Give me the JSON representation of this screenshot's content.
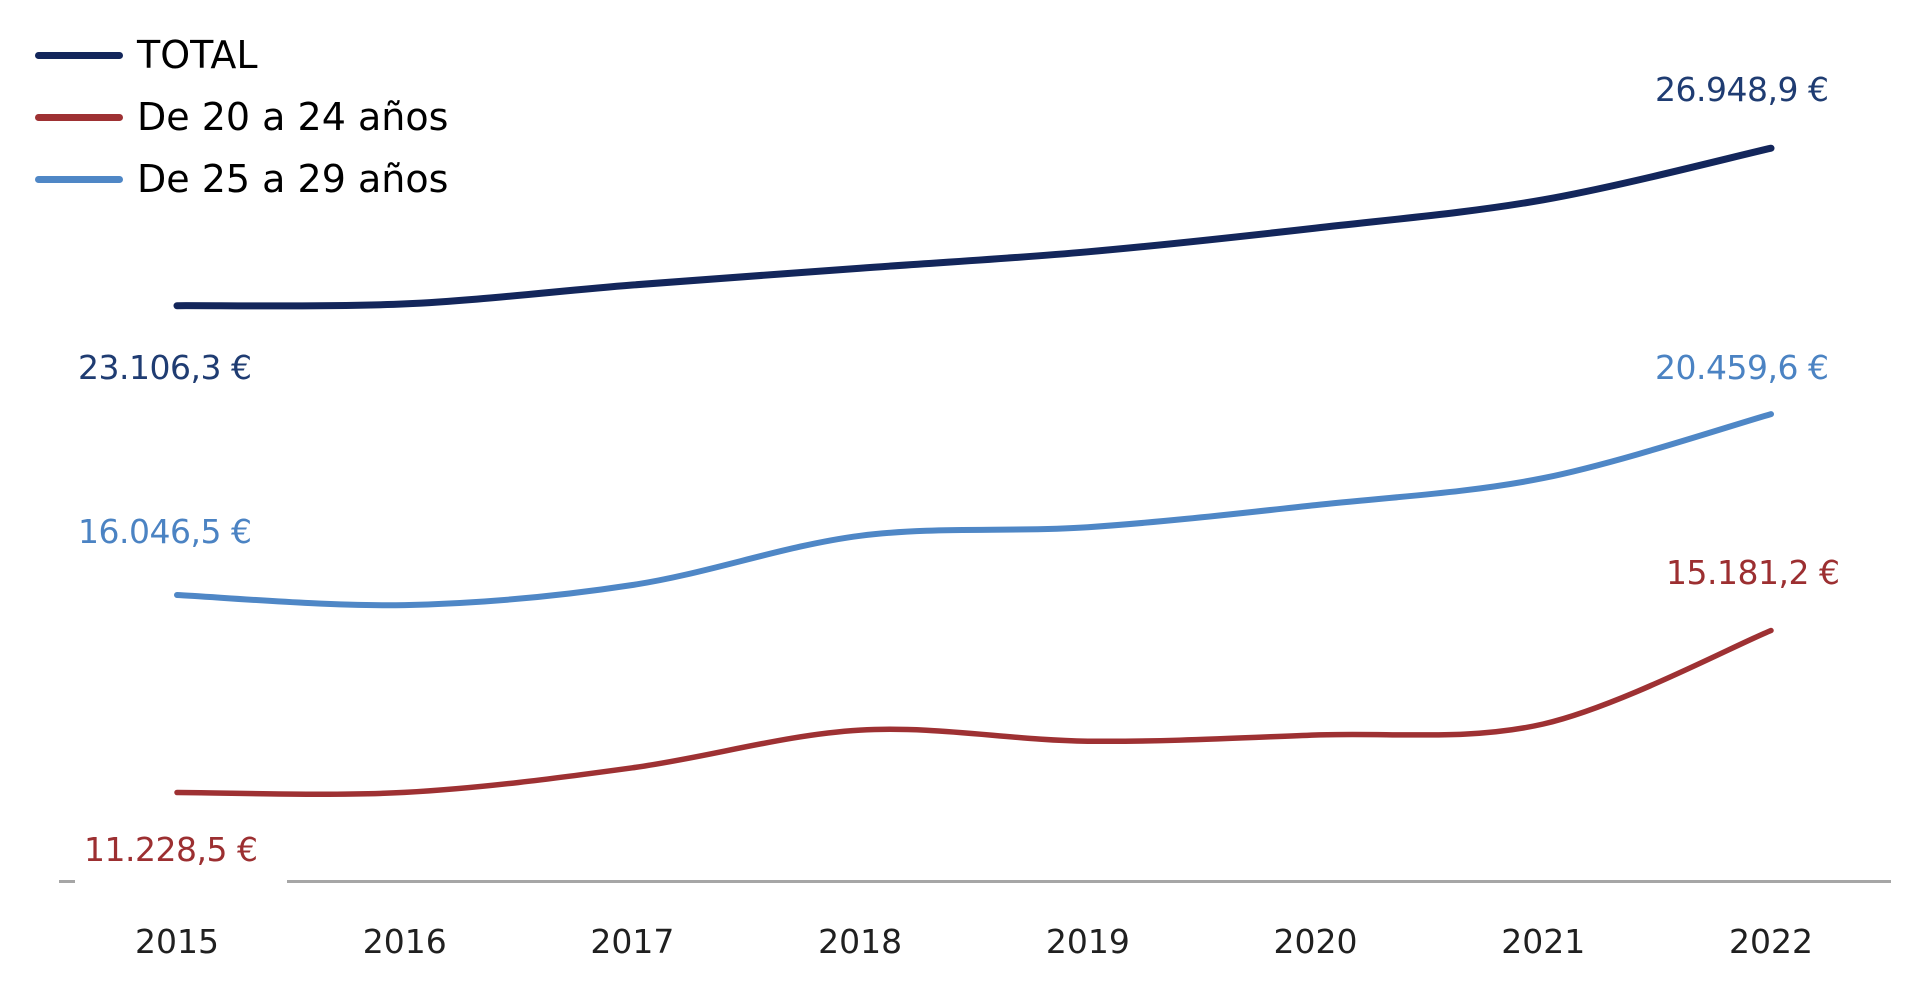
{
  "chart_data": {
    "type": "line",
    "title": "",
    "unit": "€",
    "grid": false,
    "legend_position": "top-left",
    "background": "#ffffff",
    "axis_line_color": "#a6a6a6",
    "value_axis_visible": false,
    "categories": [
      "2015",
      "2016",
      "2017",
      "2018",
      "2019",
      "2020",
      "2021",
      "2022"
    ],
    "series": [
      {
        "name": "TOTAL",
        "color": "#13265b",
        "label_color": "#1f3c72",
        "values": [
          23106.3,
          23150,
          23610,
          24020,
          24420,
          25000,
          25690,
          26948.9
        ],
        "first_point_label": "23.106,3 €",
        "last_point_label": "26.948,9 €"
      },
      {
        "name": "De 20 a 24 años",
        "color": "#9e3133",
        "label_color": "#9c2f31",
        "values": [
          11228.5,
          11230,
          11830,
          12750,
          12480,
          12630,
          12900,
          15181.2
        ],
        "first_point_label": "11.228,5 €",
        "last_point_label": "15.181,2 €"
      },
      {
        "name": "De 25 a 29 años",
        "color": "#4f87c6",
        "label_color": "#4b83c3",
        "values": [
          16046.5,
          15800,
          16290,
          17490,
          17700,
          18240,
          18900,
          20459.6
        ],
        "first_point_label": "16.046,5 €",
        "last_point_label": "20.459,6 €"
      }
    ]
  }
}
